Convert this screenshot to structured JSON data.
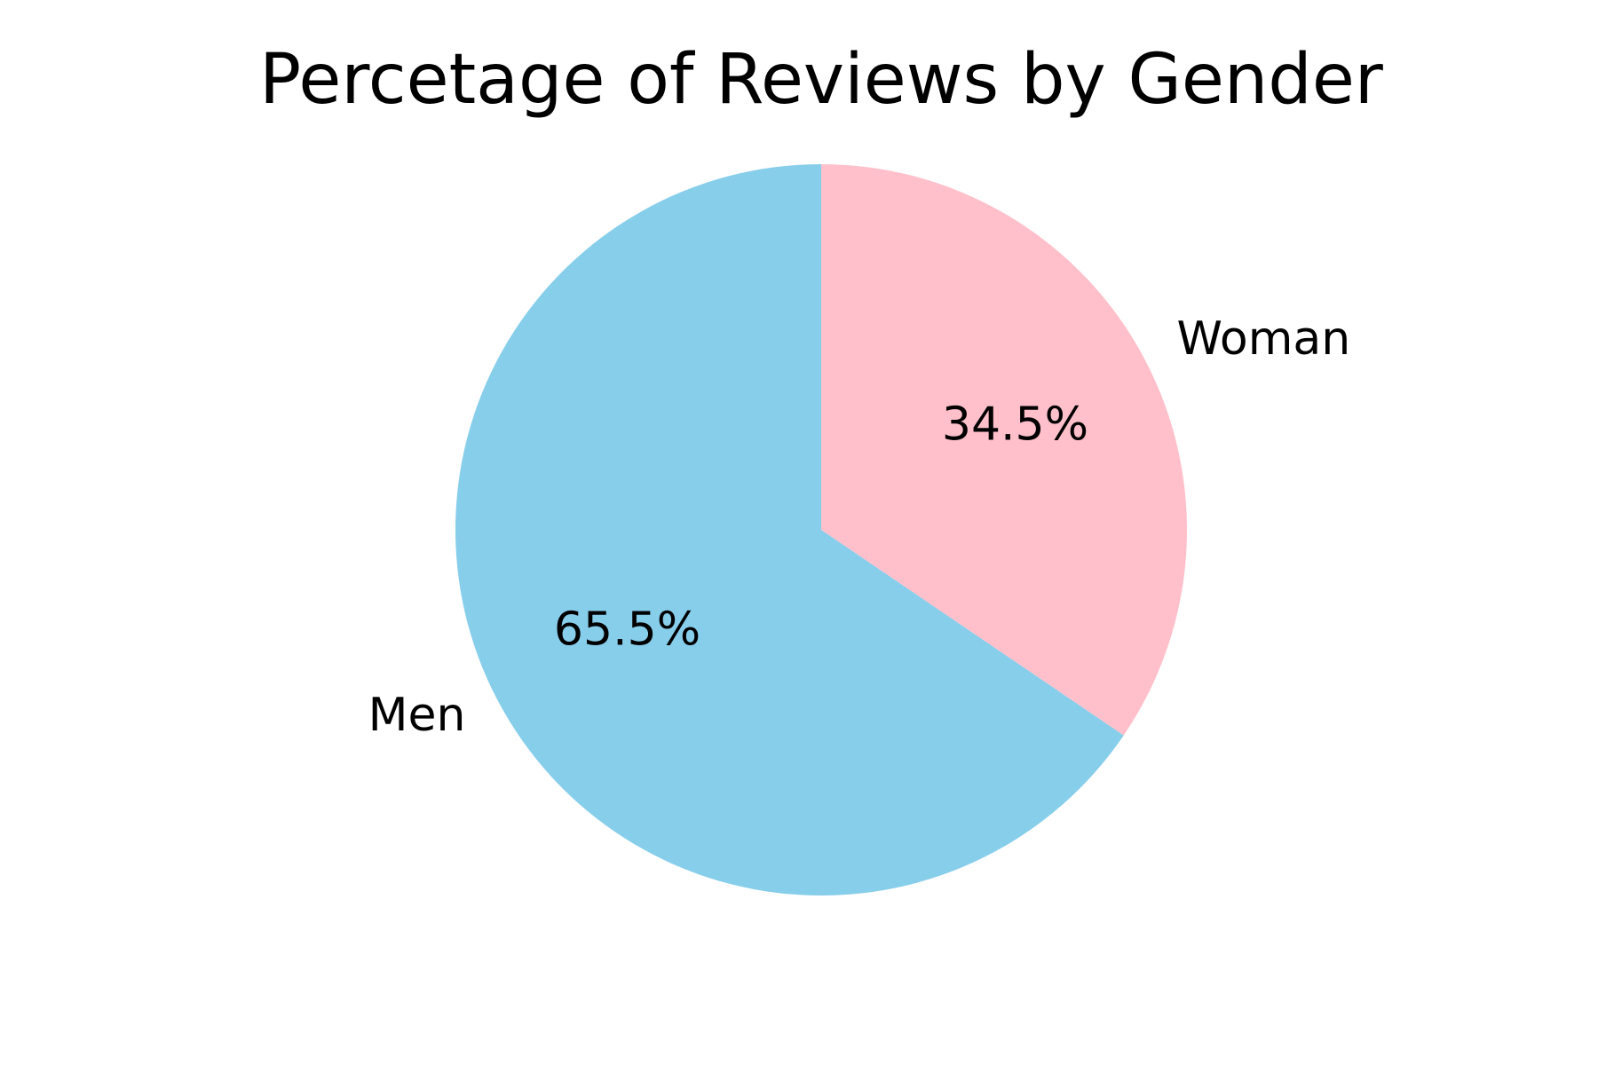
{
  "chart_data": {
    "type": "pie",
    "title": "Percetage of Reviews by Gender",
    "slices": [
      {
        "label": "Woman",
        "value": 34.5,
        "pct_label": "34.5%",
        "color": "#FFC0CB"
      },
      {
        "label": "Men",
        "value": 65.5,
        "pct_label": "65.5%",
        "color": "#87CEEB"
      }
    ],
    "start_angle_deg": 90,
    "direction": "clockwise",
    "legend": "none"
  }
}
